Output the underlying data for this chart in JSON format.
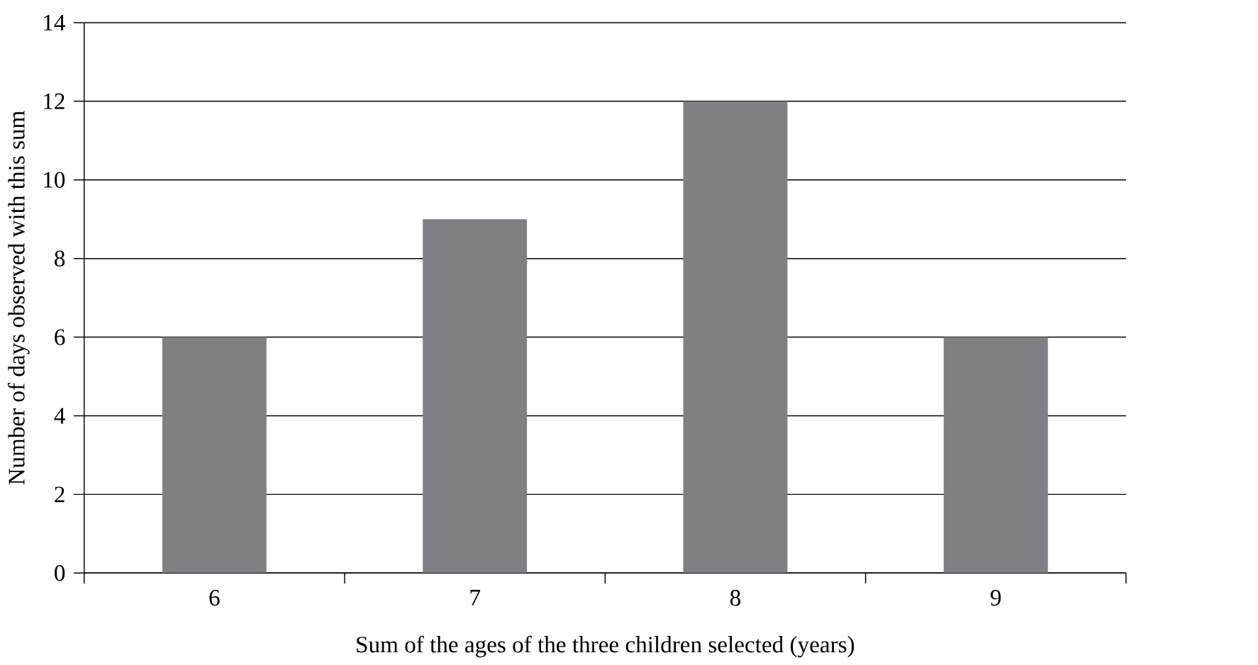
{
  "chart_data": {
    "type": "bar",
    "xlabel": "Sum of the ages of the three children selected (years)",
    "ylabel": "Number of days observed with this sum",
    "categories": [
      "6",
      "7",
      "8",
      "9"
    ],
    "values": [
      6,
      9,
      12,
      6
    ],
    "color": "#808084",
    "ylim": [
      0,
      14
    ],
    "yticks": [
      0,
      2,
      4,
      6,
      8,
      10,
      12,
      14
    ],
    "grid": "y"
  }
}
